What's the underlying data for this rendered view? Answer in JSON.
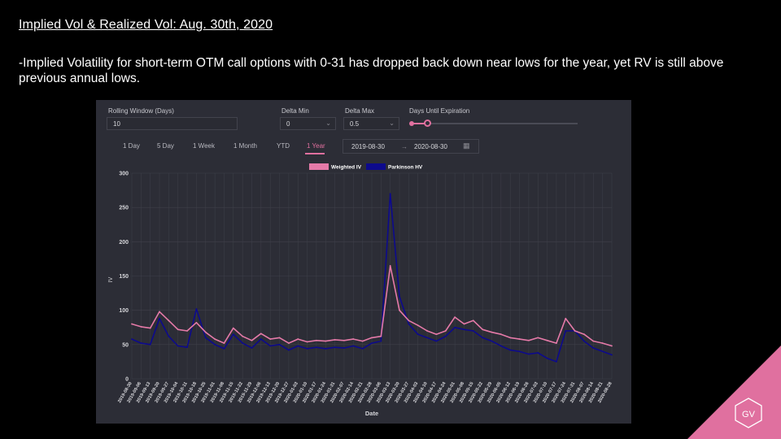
{
  "slide": {
    "title": "Implied Vol & Realized Vol: Aug. 30th, 2020",
    "description": "-Implied Volatility for short-term OTM call options with 0-31 has dropped back down near lows for the year, yet RV is still above previous annual lows.",
    "logo_text": "GV"
  },
  "controls": {
    "rolling_window": {
      "label": "Rolling Window (Days)",
      "value": "10"
    },
    "delta_min": {
      "label": "Delta Min",
      "value": "0"
    },
    "delta_max": {
      "label": "Delta Max",
      "value": "0.5"
    },
    "days_until_expiration": {
      "label": "Days Until Expiration"
    },
    "tabs": [
      "1 Day",
      "5 Day",
      "1 Week",
      "1 Month",
      "YTD",
      "1 Year"
    ],
    "active_tab": "1 Year",
    "date_start": "2019-08-30",
    "date_arrow": "→",
    "date_end": "2020-08-30"
  },
  "colors": {
    "weighted_iv": "#e57aa8",
    "parkinson_hv": "#0d0a8c",
    "accent": "#e0709f"
  },
  "chart_data": {
    "type": "line",
    "xlabel": "Date",
    "ylabel": "IV",
    "ylim": [
      0,
      300
    ],
    "yticks": [
      0,
      50,
      100,
      150,
      200,
      250,
      300
    ],
    "grid": true,
    "legend": "top-center",
    "x_ticks": [
      "2019-08-30",
      "2019-09-06",
      "2019-09-13",
      "2019-09-20",
      "2019-09-27",
      "2019-10-04",
      "2019-10-11",
      "2019-10-18",
      "2019-10-25",
      "2019-11-01",
      "2019-11-08",
      "2019-11-15",
      "2019-11-22",
      "2019-11-29",
      "2019-12-06",
      "2019-12-13",
      "2019-12-20",
      "2019-12-27",
      "2020-01-03",
      "2020-01-10",
      "2020-01-17",
      "2020-01-24",
      "2020-01-31",
      "2020-02-07",
      "2020-02-14",
      "2020-02-21",
      "2020-02-28",
      "2020-03-06",
      "2020-03-13",
      "2020-03-20",
      "2020-03-27",
      "2020-04-03",
      "2020-04-10",
      "2020-04-17",
      "2020-04-24",
      "2020-05-01",
      "2020-05-08",
      "2020-05-15",
      "2020-05-22",
      "2020-05-29",
      "2020-06-05",
      "2020-06-12",
      "2020-06-19",
      "2020-06-26",
      "2020-07-03",
      "2020-07-10",
      "2020-07-17",
      "2020-07-24",
      "2020-07-31",
      "2020-08-07",
      "2020-08-14",
      "2020-08-21",
      "2020-08-28"
    ],
    "series": [
      {
        "name": "Weighted IV",
        "values": [
          80,
          76,
          74,
          98,
          85,
          72,
          70,
          82,
          68,
          58,
          52,
          74,
          62,
          56,
          66,
          58,
          60,
          52,
          58,
          54,
          56,
          55,
          57,
          56,
          58,
          55,
          60,
          62,
          165,
          100,
          85,
          78,
          70,
          65,
          70,
          90,
          80,
          85,
          72,
          68,
          65,
          60,
          58,
          56,
          60,
          56,
          52,
          88,
          70,
          65,
          55,
          52,
          48
        ]
      },
      {
        "name": "Parkinson HV",
        "values": [
          58,
          52,
          50,
          88,
          62,
          48,
          46,
          102,
          60,
          50,
          44,
          65,
          52,
          45,
          58,
          48,
          50,
          42,
          48,
          44,
          46,
          44,
          46,
          45,
          48,
          44,
          52,
          55,
          270,
          120,
          80,
          65,
          60,
          55,
          62,
          75,
          72,
          70,
          60,
          55,
          48,
          42,
          40,
          36,
          38,
          30,
          25,
          70,
          70,
          55,
          45,
          40,
          35
        ]
      }
    ]
  }
}
